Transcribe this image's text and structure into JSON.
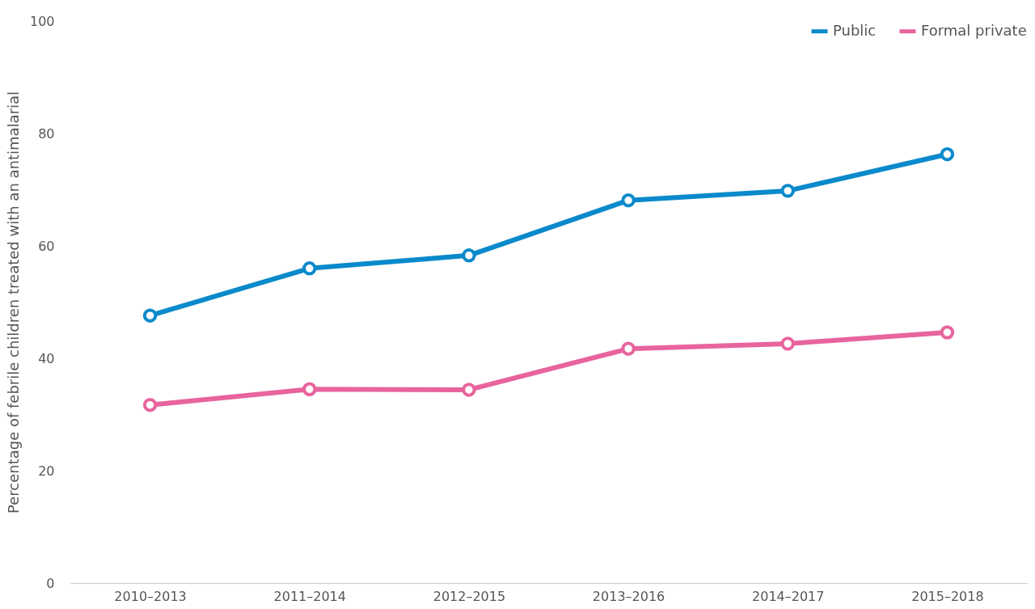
{
  "chart_data": {
    "type": "line",
    "ylabel": "Percentage of febrile children treated with an antimalarial",
    "categories": [
      "2010–2013",
      "2011–2014",
      "2012–2015",
      "2013–2016",
      "2014–2017",
      "2015–2018"
    ],
    "series": [
      {
        "name": "Public",
        "color": "#0a8acb",
        "values": [
          47.6,
          56.0,
          58.3,
          68.1,
          69.8,
          76.3
        ]
      },
      {
        "name": "Formal private",
        "color": "#e8649e",
        "values": [
          31.7,
          34.5,
          34.4,
          41.7,
          42.6,
          44.6
        ]
      }
    ],
    "ylim": [
      0,
      100
    ],
    "yticks": [
      0,
      20,
      40,
      60,
      80,
      100
    ],
    "grid": false,
    "legend": "top right",
    "marker": "circle",
    "line_style": "solid"
  }
}
